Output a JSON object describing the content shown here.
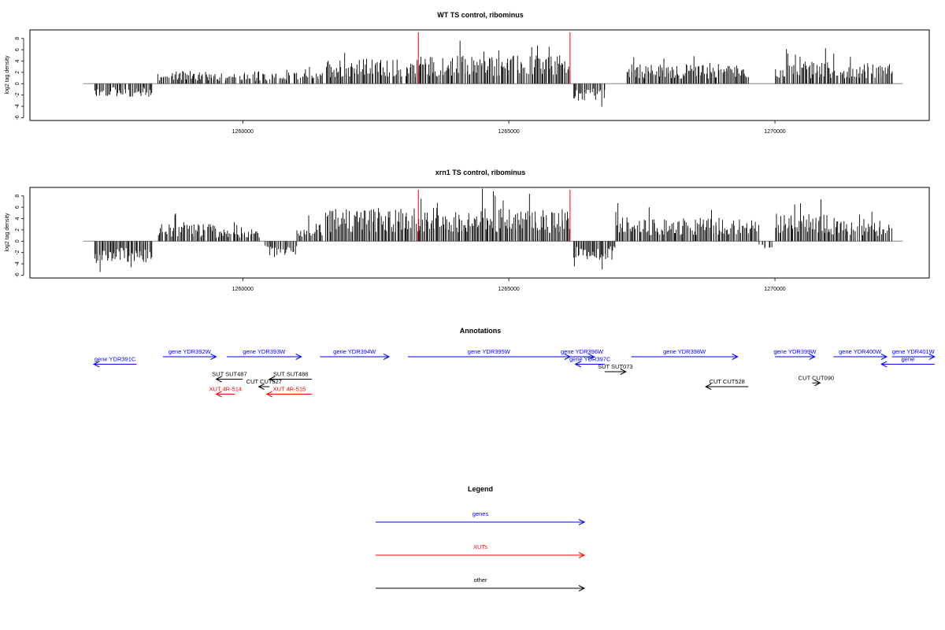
{
  "chart_data": [
    {
      "type": "bar",
      "title": "WT TS control, ribominus",
      "ylabel": "log2 tag density",
      "yticks": [
        -6,
        -4,
        -2,
        0,
        2,
        4,
        6,
        8
      ],
      "ylim": [
        -6.5,
        9.5
      ],
      "xlim": [
        1256000,
        1272900
      ],
      "xticks": [
        1260000,
        1265000,
        1270000
      ],
      "xtick_labels": [
        "1260000",
        "1265000",
        "1270000"
      ],
      "markers": [
        1263300,
        1266150
      ],
      "marker_color": "#ff0000",
      "bar_color": "#000000",
      "profile": [
        [
          1257200,
          1258300,
          -1.8,
          0.9
        ],
        [
          1258400,
          1259500,
          1.6,
          0.9
        ],
        [
          1259500,
          1261500,
          1.4,
          0.8
        ],
        [
          1261550,
          1263300,
          3.2,
          0.95
        ],
        [
          1263300,
          1266150,
          3.6,
          0.95
        ],
        [
          1266200,
          1266800,
          -2.2,
          0.9
        ],
        [
          1267200,
          1269500,
          2.5,
          0.95
        ],
        [
          1270000,
          1271000,
          2.8,
          0.95
        ],
        [
          1271000,
          1272200,
          2.5,
          0.9
        ]
      ]
    },
    {
      "type": "bar",
      "title": "xrn1 TS control, ribominus",
      "ylabel": "log2 tag density",
      "yticks": [
        -6,
        -4,
        -2,
        0,
        2,
        4,
        6,
        8
      ],
      "ylim": [
        -6.5,
        9.5
      ],
      "xlim": [
        1256000,
        1272900
      ],
      "xticks": [
        1260000,
        1265000,
        1270000
      ],
      "xtick_labels": [
        "1260000",
        "1265000",
        "1270000"
      ],
      "markers": [
        1263300,
        1266150
      ],
      "marker_color": "#ff0000",
      "bar_color": "#000000",
      "profile": [
        [
          1257200,
          1258300,
          -2.8,
          1.0
        ],
        [
          1258400,
          1259500,
          2.2,
          0.95
        ],
        [
          1259500,
          1260300,
          1.6,
          0.9
        ],
        [
          1260400,
          1261000,
          -1.8,
          0.8
        ],
        [
          1261000,
          1261500,
          2.2,
          0.9
        ],
        [
          1261550,
          1263300,
          4.2,
          1.0
        ],
        [
          1263300,
          1266150,
          4.2,
          1.0
        ],
        [
          1266200,
          1267000,
          -2.4,
          0.95
        ],
        [
          1267000,
          1269700,
          3.0,
          0.95
        ],
        [
          1269700,
          1270000,
          -1.0,
          0.6
        ],
        [
          1270000,
          1271000,
          3.4,
          1.0
        ],
        [
          1271000,
          1272200,
          2.6,
          0.95
        ]
      ]
    }
  ],
  "annotations": {
    "title": "Annotations",
    "xlim": [
      1256000,
      1272900
    ],
    "features": [
      {
        "label": "gene YDR391C",
        "start": 1257200,
        "end": 1258000,
        "strand": "-",
        "row": 1,
        "color": "#0000ff"
      },
      {
        "label": "gene YDR392W",
        "start": 1258500,
        "end": 1259500,
        "strand": "+",
        "row": 0,
        "color": "#0000ff"
      },
      {
        "label": "gene YDR393W",
        "start": 1259700,
        "end": 1261100,
        "strand": "+",
        "row": 0,
        "color": "#0000ff"
      },
      {
        "label": "gene YDR394W",
        "start": 1261450,
        "end": 1262750,
        "strand": "+",
        "row": 0,
        "color": "#0000ff"
      },
      {
        "label": "gene YDR395W",
        "start": 1263100,
        "end": 1266150,
        "strand": "+",
        "row": 0,
        "color": "#0000ff"
      },
      {
        "label": "gene YDR396W",
        "start": 1266150,
        "end": 1266600,
        "strand": "+",
        "row": 0,
        "color": "#0000ff"
      },
      {
        "label": "gene YDR397C",
        "start": 1266250,
        "end": 1266800,
        "strand": "-",
        "row": 1,
        "color": "#0000ff"
      },
      {
        "label": "gene YDR398W",
        "start": 1267300,
        "end": 1269300,
        "strand": "+",
        "row": 0,
        "color": "#0000ff"
      },
      {
        "label": "gene YDR399W",
        "start": 1270000,
        "end": 1270750,
        "strand": "+",
        "row": 0,
        "color": "#0000ff"
      },
      {
        "label": "gene YDR400W",
        "start": 1271100,
        "end": 1272100,
        "strand": "+",
        "row": 0,
        "color": "#0000ff"
      },
      {
        "label": "gene YDR401W",
        "start": 1272200,
        "end": 1273000,
        "strand": "+",
        "row": 0,
        "color": "#0000ff"
      },
      {
        "label": "gene",
        "start": 1272000,
        "end": 1273000,
        "strand": "-",
        "row": 1,
        "color": "#0000ff"
      },
      {
        "label": "SUT SUT487",
        "start": 1259500,
        "end": 1260000,
        "strand": "-",
        "row": 3,
        "color": "#000000"
      },
      {
        "label": "SUT SUT488",
        "start": 1260500,
        "end": 1261300,
        "strand": "-",
        "row": 3,
        "color": "#000000"
      },
      {
        "label": "SUT SUT073",
        "start": 1266800,
        "end": 1267200,
        "strand": "+",
        "row": 2,
        "color": "#000000"
      },
      {
        "label": "CUT CUT527",
        "start": 1260300,
        "end": 1260500,
        "strand": "-",
        "row": 4,
        "color": "#000000"
      },
      {
        "label": "CUT CUT528",
        "start": 1268700,
        "end": 1269500,
        "strand": "-",
        "row": 4,
        "color": "#000000"
      },
      {
        "label": "CUT CUT090",
        "start": 1270700,
        "end": 1270850,
        "strand": "+",
        "row": 3.5,
        "color": "#000000"
      },
      {
        "label": "XUT 4R-514",
        "start": 1259500,
        "end": 1259850,
        "strand": "-",
        "row": 5,
        "color": "#ff0000"
      },
      {
        "label": "XUT 4R-515",
        "start": 1260450,
        "end": 1261300,
        "strand": "-",
        "row": 5,
        "color": "#ff0000"
      }
    ]
  },
  "legend": {
    "title": "Legend",
    "items": [
      {
        "label": "genes",
        "color": "#0000ff"
      },
      {
        "label": "XUTs",
        "color": "#ff0000"
      },
      {
        "label": "other",
        "color": "#000000"
      }
    ]
  }
}
